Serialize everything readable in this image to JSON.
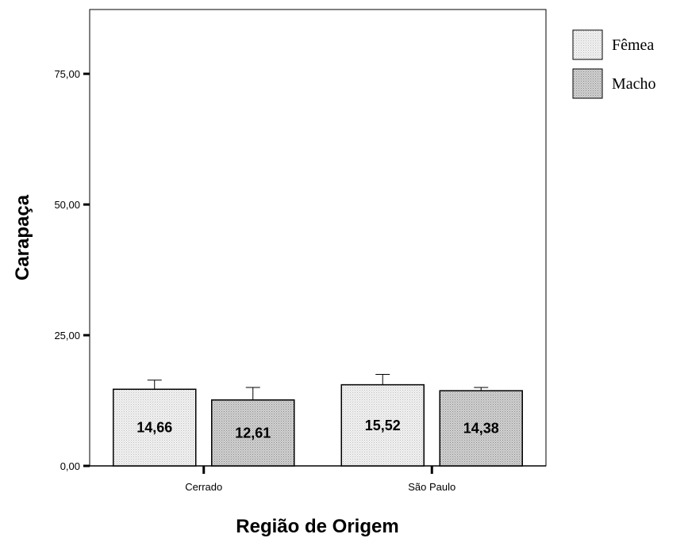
{
  "chart_data": {
    "type": "bar",
    "title": "",
    "xlabel": "Região de Origem",
    "ylabel": "Carapaça",
    "categories": [
      "Cerrado",
      "São Paulo"
    ],
    "series": [
      {
        "name": "Fêmea",
        "values": [
          14.66,
          15.52
        ],
        "error_upper": [
          16.4,
          17.5
        ],
        "labels": [
          "14,66",
          "15,52"
        ],
        "color": "#e8e8e8"
      },
      {
        "name": "Macho",
        "values": [
          12.61,
          14.38
        ],
        "error_upper": [
          15.0,
          15.0
        ],
        "labels": [
          "12,61",
          "14,38"
        ],
        "color": "#c4c4c4"
      }
    ],
    "ylim": [
      0,
      87.3
    ],
    "yticks": [
      0,
      25,
      50,
      75
    ],
    "ytick_labels": [
      "0,00",
      "25,00",
      "50,00",
      "75,00"
    ],
    "grid": false,
    "legend_position": "top-right",
    "error_bars": true
  }
}
